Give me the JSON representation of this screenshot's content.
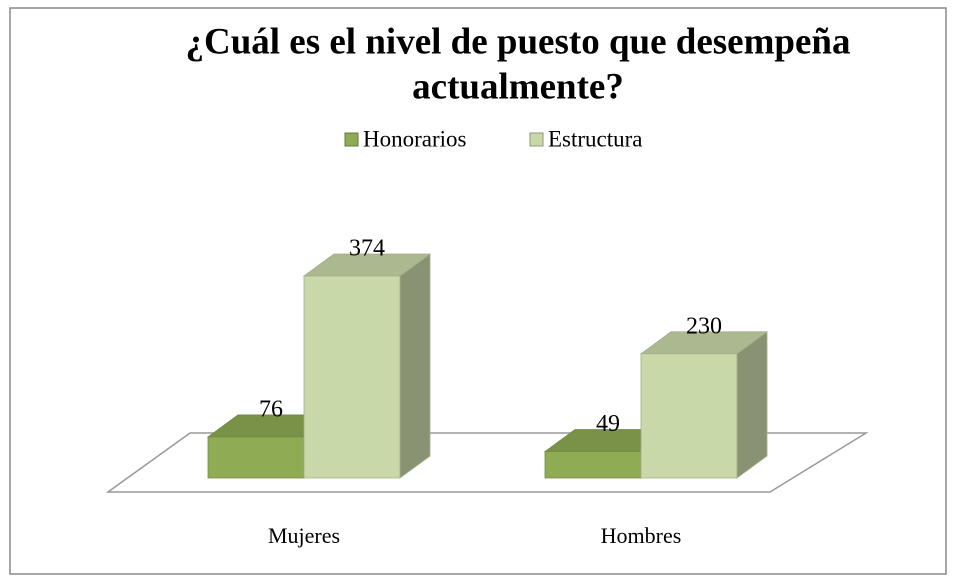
{
  "chart_data": {
    "type": "bar3d",
    "title": [
      "¿Cuál es el nivel de puesto que desempeña",
      "actualmente?"
    ],
    "categories": [
      "Mujeres",
      "Hombres"
    ],
    "series": [
      {
        "name": "Honorarios",
        "color": "#8fac55",
        "values": [
          76,
          49
        ]
      },
      {
        "name": "Estructura",
        "color": "#c9d8a9",
        "values": [
          374,
          230
        ]
      }
    ],
    "legend": "top"
  }
}
